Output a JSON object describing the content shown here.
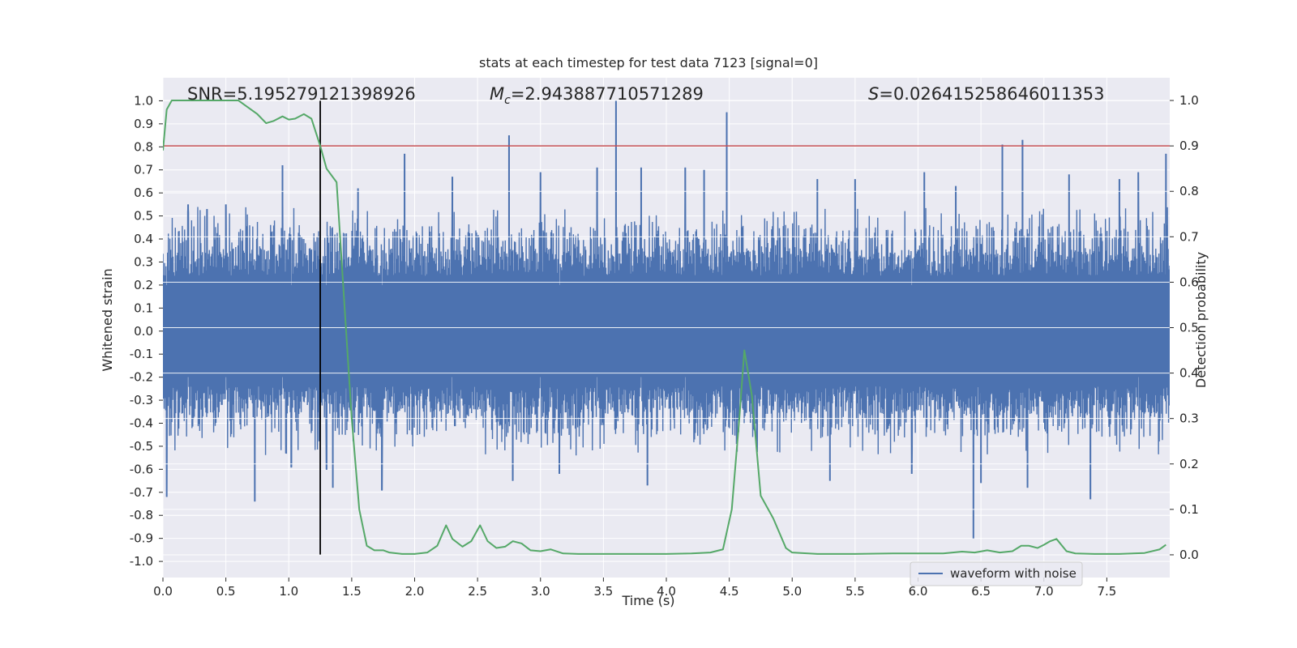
{
  "chart_data": {
    "type": "line",
    "title": "stats at each timestep for test data 7123 [signal=0]",
    "xlabel": "Time (s)",
    "ylabel": "Whitened strain",
    "ylabel_right": "Detection probability",
    "xlim": [
      0.0,
      8.0
    ],
    "ylim": [
      -1.07,
      1.1
    ],
    "ylim_right": [
      -0.05,
      1.05
    ],
    "xticks": [
      0.0,
      0.5,
      1.0,
      1.5,
      2.0,
      2.5,
      3.0,
      3.5,
      4.0,
      4.5,
      5.0,
      5.5,
      6.0,
      6.5,
      7.0,
      7.5
    ],
    "xtick_labels": [
      "0.0",
      "0.5",
      "1.0",
      "1.5",
      "2.0",
      "2.5",
      "3.0",
      "3.5",
      "4.0",
      "4.5",
      "5.0",
      "5.5",
      "6.0",
      "6.5",
      "7.0",
      "7.5"
    ],
    "yticks": [
      1.0,
      0.9,
      0.8,
      0.7,
      0.6,
      0.5,
      0.4,
      0.3,
      0.2,
      0.1,
      0.0,
      -0.1,
      -0.2,
      -0.3,
      -0.4,
      -0.5,
      -0.6,
      -0.7,
      -0.8,
      -0.9,
      -1.0
    ],
    "ytick_labels": [
      "1.0",
      "0.9",
      "0.8",
      "0.7",
      "0.6",
      "0.5",
      "0.4",
      "0.3",
      "0.2",
      "0.1",
      "0.0",
      "-0.1",
      "-0.2",
      "-0.3",
      "-0.4",
      "-0.5",
      "-0.6",
      "-0.7",
      "-0.8",
      "-0.9",
      "-1.0"
    ],
    "yticks_right": [
      1.0,
      0.9,
      0.8,
      0.7,
      0.6,
      0.5,
      0.4,
      0.3,
      0.2,
      0.1,
      0.0
    ],
    "ytick_labels_right": [
      "1.0",
      "0.9",
      "0.8",
      "0.7",
      "0.6",
      "0.5",
      "0.4",
      "0.3",
      "0.2",
      "0.1",
      "0.0"
    ],
    "annotations": {
      "snr": "SNR=5.195279121398926",
      "mc_symbol": "M",
      "mc_sub": "c",
      "mc_value": "=2.943887710571289",
      "s_symbol": "S",
      "s_value": "=0.026415258646011353"
    },
    "threshold": {
      "value": 0.9,
      "axis": "right",
      "color": "#c44e52"
    },
    "vertical_line": {
      "x": 1.25,
      "y_range": [
        -0.97,
        1.0
      ],
      "color": "#000000"
    },
    "legend": {
      "label": "waveform with noise",
      "position": "lower-right"
    },
    "waveform": {
      "name": "waveform with noise",
      "color": "#4c72b0",
      "spikes": [
        [
          0.03,
          -0.72
        ],
        [
          0.2,
          0.55
        ],
        [
          0.35,
          0.53
        ],
        [
          0.5,
          0.55
        ],
        [
          0.73,
          -0.74
        ],
        [
          0.95,
          0.72
        ],
        [
          1.02,
          -0.59
        ],
        [
          1.3,
          -0.6
        ],
        [
          1.35,
          -0.68
        ],
        [
          1.55,
          0.62
        ],
        [
          1.74,
          -0.69
        ],
        [
          1.92,
          0.77
        ],
        [
          2.3,
          0.67
        ],
        [
          2.75,
          0.85
        ],
        [
          2.78,
          -0.65
        ],
        [
          3.0,
          0.69
        ],
        [
          3.15,
          -0.62
        ],
        [
          3.45,
          0.71
        ],
        [
          3.6,
          1.0
        ],
        [
          3.8,
          0.71
        ],
        [
          3.85,
          -0.67
        ],
        [
          4.15,
          0.71
        ],
        [
          4.3,
          0.7
        ],
        [
          4.48,
          0.95
        ],
        [
          5.2,
          0.66
        ],
        [
          5.3,
          -0.65
        ],
        [
          5.5,
          0.66
        ],
        [
          5.95,
          -0.62
        ],
        [
          6.05,
          0.69
        ],
        [
          6.3,
          0.63
        ],
        [
          6.44,
          -0.9
        ],
        [
          6.5,
          -0.66
        ],
        [
          6.67,
          0.81
        ],
        [
          6.83,
          0.83
        ],
        [
          6.87,
          -0.68
        ],
        [
          7.2,
          0.68
        ],
        [
          7.37,
          -0.73
        ],
        [
          7.6,
          0.66
        ],
        [
          7.75,
          0.69
        ],
        [
          7.97,
          0.77
        ]
      ]
    },
    "detection_probability": {
      "name": "Detection probability",
      "color": "#55a868",
      "axis": "right",
      "x": [
        0.0,
        0.03,
        0.07,
        0.1,
        0.15,
        0.2,
        0.3,
        0.4,
        0.5,
        0.6,
        0.65,
        0.75,
        0.82,
        0.88,
        0.95,
        1.0,
        1.05,
        1.12,
        1.18,
        1.25,
        1.3,
        1.38,
        1.5,
        1.56,
        1.62,
        1.68,
        1.75,
        1.8,
        1.9,
        2.0,
        2.1,
        2.18,
        2.25,
        2.3,
        2.38,
        2.45,
        2.52,
        2.58,
        2.65,
        2.72,
        2.78,
        2.85,
        2.92,
        3.0,
        3.08,
        3.18,
        3.3,
        3.5,
        3.7,
        4.0,
        4.2,
        4.35,
        4.45,
        4.52,
        4.58,
        4.62,
        4.68,
        4.75,
        4.85,
        4.95,
        5.0,
        5.2,
        5.5,
        5.8,
        6.0,
        6.2,
        6.35,
        6.45,
        6.55,
        6.65,
        6.75,
        6.82,
        6.88,
        6.95,
        7.0,
        7.05,
        7.1,
        7.18,
        7.25,
        7.4,
        7.6,
        7.8,
        7.92,
        7.97
      ],
      "y": [
        0.89,
        0.98,
        1.0,
        1.0,
        1.0,
        1.0,
        1.0,
        1.0,
        1.0,
        1.0,
        0.99,
        0.97,
        0.95,
        0.955,
        0.965,
        0.958,
        0.96,
        0.97,
        0.96,
        0.9,
        0.85,
        0.82,
        0.3,
        0.1,
        0.02,
        0.01,
        0.01,
        0.005,
        0.002,
        0.002,
        0.005,
        0.02,
        0.065,
        0.035,
        0.018,
        0.03,
        0.065,
        0.03,
        0.015,
        0.018,
        0.03,
        0.025,
        0.01,
        0.008,
        0.012,
        0.003,
        0.002,
        0.002,
        0.002,
        0.002,
        0.003,
        0.005,
        0.012,
        0.1,
        0.3,
        0.45,
        0.35,
        0.13,
        0.08,
        0.015,
        0.005,
        0.002,
        0.002,
        0.003,
        0.003,
        0.003,
        0.007,
        0.005,
        0.01,
        0.005,
        0.008,
        0.02,
        0.02,
        0.015,
        0.022,
        0.03,
        0.035,
        0.008,
        0.003,
        0.002,
        0.002,
        0.004,
        0.012,
        0.022
      ]
    }
  }
}
